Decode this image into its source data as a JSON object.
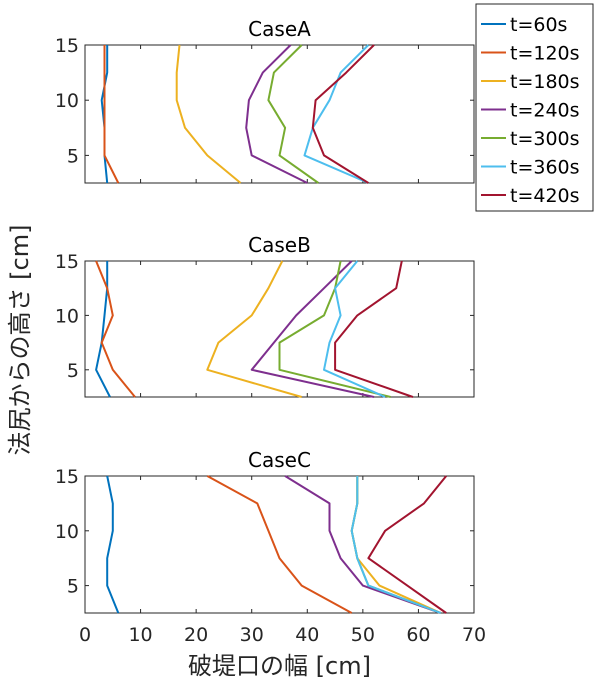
{
  "chart_data": {
    "type": "line",
    "xlabel": "破堤口の幅 [cm]",
    "ylabel": "法尻からの高さ [cm]",
    "xlim": [
      0,
      70
    ],
    "ylim": [
      2.5,
      15
    ],
    "xticks": [
      "0",
      "10",
      "20",
      "30",
      "40",
      "50",
      "60",
      "70"
    ],
    "yticks": [
      "5",
      "10",
      "15"
    ],
    "legend_position": "top-right outside",
    "legend": [
      {
        "name": "t=60s",
        "color": "#0072BD"
      },
      {
        "name": "t=120s",
        "color": "#D95319"
      },
      {
        "name": "t=180s",
        "color": "#EDB120"
      },
      {
        "name": "t=240s",
        "color": "#7E2F8E"
      },
      {
        "name": "t=300s",
        "color": "#77AC30"
      },
      {
        "name": "t=360s",
        "color": "#4DBEEE"
      },
      {
        "name": "t=420s",
        "color": "#A2142F"
      }
    ],
    "panels": [
      {
        "title": "CaseA",
        "series": [
          {
            "name": "t=60s",
            "color": "#0072BD",
            "points": [
              [
                4,
                2.5
              ],
              [
                3.5,
                5
              ],
              [
                3.5,
                7.5
              ],
              [
                3,
                10
              ],
              [
                4,
                12.5
              ],
              [
                4,
                15
              ]
            ]
          },
          {
            "name": "t=120s",
            "color": "#D95319",
            "points": [
              [
                6,
                2.5
              ],
              [
                3.5,
                5
              ],
              [
                3.5,
                7.5
              ],
              [
                3.5,
                10
              ],
              [
                3.5,
                12.5
              ],
              [
                3.5,
                15
              ]
            ]
          },
          {
            "name": "t=180s",
            "color": "#EDB120",
            "points": [
              [
                28,
                2.5
              ],
              [
                22,
                5
              ],
              [
                18,
                7.5
              ],
              [
                16.5,
                10
              ],
              [
                16.5,
                12.5
              ],
              [
                17,
                15
              ]
            ]
          },
          {
            "name": "t=240s",
            "color": "#7E2F8E",
            "points": [
              [
                40,
                2.5
              ],
              [
                30,
                5
              ],
              [
                29,
                7.5
              ],
              [
                29.5,
                10
              ],
              [
                32,
                12.5
              ],
              [
                37,
                15
              ]
            ]
          },
          {
            "name": "t=300s",
            "color": "#77AC30",
            "points": [
              [
                42,
                2.5
              ],
              [
                35,
                5
              ],
              [
                36,
                7.5
              ],
              [
                33,
                10
              ],
              [
                34,
                12.5
              ],
              [
                39,
                15
              ]
            ]
          },
          {
            "name": "t=360s",
            "color": "#4DBEEE",
            "points": [
              [
                51,
                2.5
              ],
              [
                39.5,
                5
              ],
              [
                41,
                7.5
              ],
              [
                44,
                10
              ],
              [
                46,
                12.5
              ],
              [
                51,
                15
              ]
            ]
          },
          {
            "name": "t=420s",
            "color": "#A2142F",
            "points": [
              [
                51,
                2.5
              ],
              [
                43,
                5
              ],
              [
                41,
                7.5
              ],
              [
                41.5,
                10
              ],
              [
                47,
                12.5
              ],
              [
                52,
                15
              ]
            ]
          }
        ]
      },
      {
        "title": "CaseB",
        "series": [
          {
            "name": "t=60s",
            "color": "#0072BD",
            "points": [
              [
                4.5,
                2.5
              ],
              [
                2,
                5
              ],
              [
                3,
                7.5
              ],
              [
                3.5,
                10
              ],
              [
                4,
                12.5
              ],
              [
                4,
                15
              ]
            ]
          },
          {
            "name": "t=120s",
            "color": "#D95319",
            "points": [
              [
                9,
                2.5
              ],
              [
                5,
                5
              ],
              [
                3,
                7.5
              ],
              [
                5,
                10
              ],
              [
                4,
                12.5
              ],
              [
                2,
                15
              ]
            ]
          },
          {
            "name": "t=180s",
            "color": "#EDB120",
            "points": [
              [
                39,
                2.5
              ],
              [
                22,
                5
              ],
              [
                24,
                7.5
              ],
              [
                30,
                10
              ],
              [
                33,
                12.5
              ],
              [
                35.5,
                15
              ]
            ]
          },
          {
            "name": "t=240s",
            "color": "#7E2F8E",
            "points": [
              [
                52,
                2.5
              ],
              [
                30,
                5
              ],
              [
                34,
                7.5
              ],
              [
                38,
                10
              ],
              [
                43,
                12.5
              ],
              [
                48,
                15
              ]
            ]
          },
          {
            "name": "t=300s",
            "color": "#77AC30",
            "points": [
              [
                55,
                2.5
              ],
              [
                35,
                5
              ],
              [
                35,
                7.5
              ],
              [
                43,
                10
              ],
              [
                45,
                12.5
              ],
              [
                46,
                15
              ]
            ]
          },
          {
            "name": "t=360s",
            "color": "#4DBEEE",
            "points": [
              [
                54,
                2.5
              ],
              [
                43,
                5
              ],
              [
                44,
                7.5
              ],
              [
                46,
                10
              ],
              [
                45,
                12.5
              ],
              [
                49,
                15
              ]
            ]
          },
          {
            "name": "t=420s",
            "color": "#A2142F",
            "points": [
              [
                59,
                2.5
              ],
              [
                45,
                5
              ],
              [
                45,
                7.5
              ],
              [
                49,
                10
              ],
              [
                56,
                12.5
              ],
              [
                57,
                15
              ]
            ]
          }
        ]
      },
      {
        "title": "CaseC",
        "series": [
          {
            "name": "t=60s",
            "color": "#0072BD",
            "points": [
              [
                6,
                2.5
              ],
              [
                4,
                5
              ],
              [
                4,
                7.5
              ],
              [
                5,
                10
              ],
              [
                5,
                12.5
              ],
              [
                4,
                15
              ]
            ]
          },
          {
            "name": "t=120s",
            "color": "#D95319",
            "points": [
              [
                48,
                2.5
              ],
              [
                39,
                5
              ],
              [
                35,
                7.5
              ],
              [
                33,
                10
              ],
              [
                31,
                12.5
              ],
              [
                22,
                15
              ]
            ]
          },
          {
            "name": "t=180s",
            "color": "#EDB120",
            "points": [
              [
                64,
                2.5
              ],
              [
                53,
                5
              ],
              [
                49,
                7.5
              ],
              [
                48,
                10
              ],
              [
                49,
                12.5
              ],
              [
                49,
                15
              ]
            ]
          },
          {
            "name": "t=240s",
            "color": "#7E2F8E",
            "points": [
              [
                64,
                2.5
              ],
              [
                50,
                5
              ],
              [
                46,
                7.5
              ],
              [
                44,
                10
              ],
              [
                44,
                12.5
              ],
              [
                36,
                15
              ]
            ]
          },
          {
            "name": "t=300s",
            "color": "#77AC30",
            "points": [
              [
                64,
                2.5
              ],
              [
                51,
                5
              ],
              [
                49,
                7.5
              ],
              [
                48,
                10
              ],
              [
                49,
                12.5
              ],
              [
                49,
                15
              ]
            ]
          },
          {
            "name": "t=360s",
            "color": "#4DBEEE",
            "points": [
              [
                64,
                2.5
              ],
              [
                51,
                5
              ],
              [
                49,
                7.5
              ],
              [
                48,
                10
              ],
              [
                49,
                12.5
              ],
              [
                49,
                15
              ]
            ]
          },
          {
            "name": "t=420s",
            "color": "#A2142F",
            "points": [
              [
                65,
                2.5
              ],
              [
                58,
                5
              ],
              [
                51,
                7.5
              ],
              [
                54,
                10
              ],
              [
                61,
                12.5
              ],
              [
                65,
                15
              ]
            ]
          }
        ]
      }
    ]
  }
}
